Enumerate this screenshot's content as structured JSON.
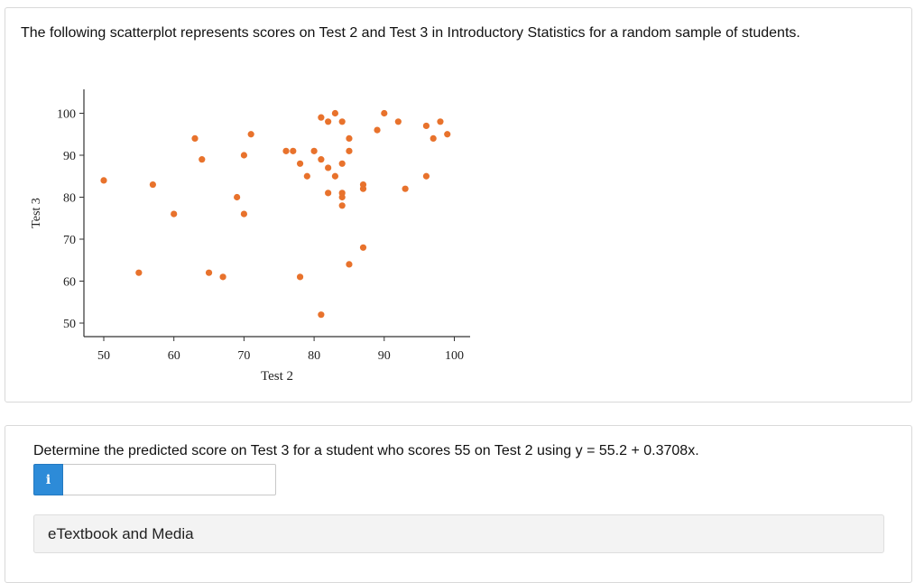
{
  "question": {
    "text": "The following scatterplot represents scores on Test 2 and Test 3 in Introductory Statistics for a random sample of students."
  },
  "chart_data": {
    "type": "scatter",
    "title": "",
    "xlabel": "Test 2",
    "ylabel": "Test 3",
    "xlim": [
      48,
      102
    ],
    "ylim": [
      45,
      106
    ],
    "x_ticks": [
      50,
      60,
      70,
      80,
      90,
      100
    ],
    "y_ticks": [
      50,
      60,
      70,
      80,
      90,
      100
    ],
    "grid": false,
    "point_color": "#e8722c",
    "points": [
      {
        "x": 50,
        "y": 84
      },
      {
        "x": 55,
        "y": 62
      },
      {
        "x": 57,
        "y": 83
      },
      {
        "x": 60,
        "y": 76
      },
      {
        "x": 63,
        "y": 94
      },
      {
        "x": 64,
        "y": 89
      },
      {
        "x": 65,
        "y": 62
      },
      {
        "x": 67,
        "y": 61
      },
      {
        "x": 69,
        "y": 80
      },
      {
        "x": 70,
        "y": 90
      },
      {
        "x": 70,
        "y": 76
      },
      {
        "x": 71,
        "y": 95
      },
      {
        "x": 76,
        "y": 91
      },
      {
        "x": 77,
        "y": 91
      },
      {
        "x": 78,
        "y": 88
      },
      {
        "x": 78,
        "y": 61
      },
      {
        "x": 79,
        "y": 85
      },
      {
        "x": 80,
        "y": 91
      },
      {
        "x": 81,
        "y": 89
      },
      {
        "x": 81,
        "y": 99
      },
      {
        "x": 81,
        "y": 52
      },
      {
        "x": 82,
        "y": 98
      },
      {
        "x": 82,
        "y": 87
      },
      {
        "x": 82,
        "y": 81
      },
      {
        "x": 83,
        "y": 100
      },
      {
        "x": 83,
        "y": 85
      },
      {
        "x": 84,
        "y": 98
      },
      {
        "x": 84,
        "y": 88
      },
      {
        "x": 84,
        "y": 81
      },
      {
        "x": 84,
        "y": 80
      },
      {
        "x": 84,
        "y": 78
      },
      {
        "x": 85,
        "y": 94
      },
      {
        "x": 85,
        "y": 91
      },
      {
        "x": 85,
        "y": 64
      },
      {
        "x": 87,
        "y": 83
      },
      {
        "x": 87,
        "y": 82
      },
      {
        "x": 87,
        "y": 68
      },
      {
        "x": 89,
        "y": 96
      },
      {
        "x": 90,
        "y": 100
      },
      {
        "x": 92,
        "y": 98
      },
      {
        "x": 93,
        "y": 82
      },
      {
        "x": 96,
        "y": 97
      },
      {
        "x": 96,
        "y": 85
      },
      {
        "x": 97,
        "y": 94
      },
      {
        "x": 98,
        "y": 98
      },
      {
        "x": 99,
        "y": 95
      }
    ]
  },
  "answer": {
    "prompt": "Determine the predicted score on Test 3 for a student who scores 55 on Test 2 using y = 55.2 + 0.3708x.",
    "info_label": "i",
    "input_value": "",
    "input_placeholder": ""
  },
  "media": {
    "label": "eTextbook and Media"
  }
}
